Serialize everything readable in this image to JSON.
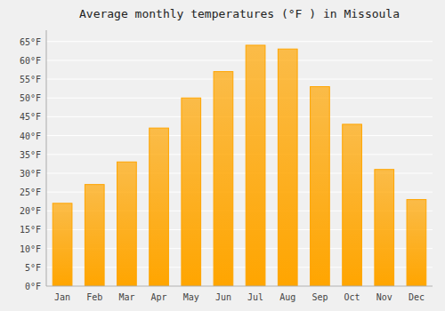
{
  "chart_data": {
    "type": "bar",
    "title": "Average monthly temperatures (°F ) in Missoula",
    "categories": [
      "Jan",
      "Feb",
      "Mar",
      "Apr",
      "May",
      "Jun",
      "Jul",
      "Aug",
      "Sep",
      "Oct",
      "Nov",
      "Dec"
    ],
    "values": [
      22,
      27,
      33,
      42,
      50,
      57,
      64,
      63,
      53,
      43,
      31,
      23
    ],
    "color": "#FFA500",
    "ylim": [
      0,
      68
    ],
    "yticks": [
      {
        "value": 0,
        "label": "0°F"
      },
      {
        "value": 5,
        "label": "5°F"
      },
      {
        "value": 10,
        "label": "10°F"
      },
      {
        "value": 15,
        "label": "15°F"
      },
      {
        "value": 20,
        "label": "20°F"
      },
      {
        "value": 25,
        "label": "25°F"
      },
      {
        "value": 30,
        "label": "30°F"
      },
      {
        "value": 35,
        "label": "35°F"
      },
      {
        "value": 40,
        "label": "40°F"
      },
      {
        "value": 45,
        "label": "45°F"
      },
      {
        "value": 50,
        "label": "50°F"
      },
      {
        "value": 55,
        "label": "55°F"
      },
      {
        "value": 60,
        "label": "60°F"
      },
      {
        "value": 65,
        "label": "65°F"
      }
    ],
    "grid": true
  }
}
